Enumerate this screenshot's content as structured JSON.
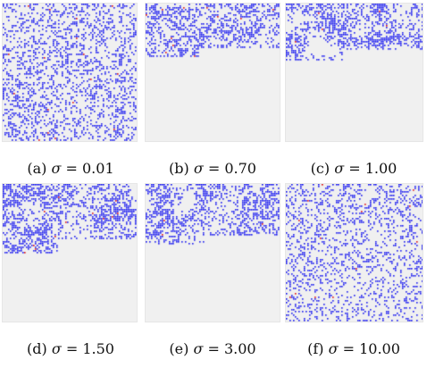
{
  "colors": {
    "background": "#f0f0f0",
    "dot_primary": "#1c1cf0",
    "dot_accent": "#e01010"
  },
  "panels": [
    {
      "tag": "(a)",
      "symbol": "σ",
      "equals": "=",
      "value": "0.01",
      "sigma": 0.01
    },
    {
      "tag": "(b)",
      "symbol": "σ",
      "equals": "=",
      "value": "0.70",
      "sigma": 0.7
    },
    {
      "tag": "(c)",
      "symbol": "σ",
      "equals": "=",
      "value": "1.00",
      "sigma": 1.0
    },
    {
      "tag": "(d)",
      "symbol": "σ",
      "equals": "=",
      "value": "1.50",
      "sigma": 1.5
    },
    {
      "tag": "(e)",
      "symbol": "σ",
      "equals": "=",
      "value": "3.00",
      "sigma": 3.0
    },
    {
      "tag": "(f)",
      "symbol": "σ",
      "equals": "=",
      "value": "10.00",
      "sigma": 10.0
    }
  ]
}
